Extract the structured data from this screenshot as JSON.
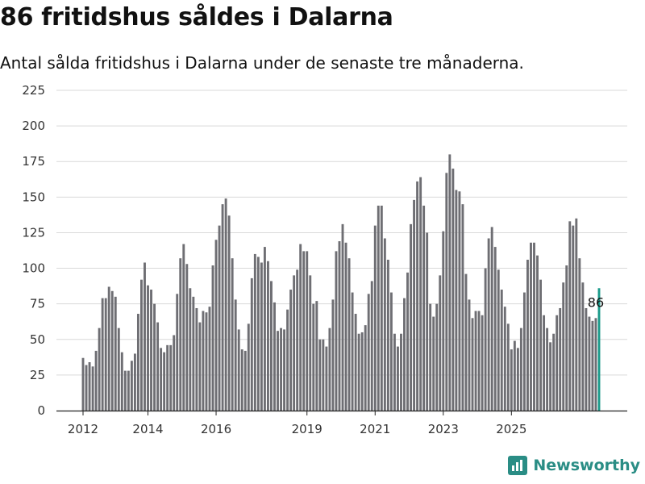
{
  "title": "86 fritidshus såldes i Dalarna",
  "subtitle": "Antal sålda fritidshus i Dalarna under de senaste tre månaderna.",
  "brand": {
    "name": "Newsworthy",
    "color": "#2a8d85",
    "logo_icon": "newsworthy-chart-icon"
  },
  "colors": {
    "bar": "#6e6e73",
    "highlight": "#1a9a8a",
    "grid": "#d9d9d9",
    "text": "#333333"
  },
  "chart_data": {
    "type": "bar",
    "title": "86 fritidshus såldes i Dalarna",
    "subtitle": "Antal sålda fritidshus i Dalarna under de senaste tre månaderna.",
    "ylim": [
      0,
      225
    ],
    "yticks": [
      0,
      25,
      50,
      75,
      100,
      125,
      150,
      175,
      200,
      225
    ],
    "xticks": [
      {
        "label": "2012",
        "index": 0
      },
      {
        "label": "2014",
        "index": 20
      },
      {
        "label": "2016",
        "index": 41
      },
      {
        "label": "2019",
        "index": 69
      },
      {
        "label": "2021",
        "index": 90
      },
      {
        "label": "2023",
        "index": 111
      },
      {
        "label": "2025",
        "index": 132
      }
    ],
    "grid": true,
    "series": [
      {
        "values": [
          37,
          32,
          34,
          31,
          42,
          58,
          79,
          79,
          87,
          84,
          80,
          58,
          41,
          28,
          28,
          35,
          40,
          68,
          92,
          104,
          88,
          85,
          75,
          62,
          44,
          41,
          46,
          46,
          53,
          82,
          107,
          117,
          103,
          86,
          80,
          72,
          62,
          70,
          69,
          73,
          102,
          120,
          130,
          145,
          149,
          137,
          107,
          78,
          57,
          43,
          42,
          61,
          93,
          110,
          108,
          104,
          115,
          105,
          91,
          76,
          56,
          58,
          57,
          71,
          85,
          95,
          99,
          117,
          112,
          112,
          95,
          75,
          77,
          50,
          50,
          45,
          58,
          78,
          112,
          119,
          131,
          118,
          107,
          83,
          68,
          54,
          55,
          60,
          82,
          91,
          130,
          144,
          144,
          121,
          106,
          83,
          54,
          45,
          54,
          79,
          97,
          131,
          148,
          161,
          164,
          144,
          125,
          75,
          66,
          75,
          95,
          126,
          167,
          180,
          170,
          155,
          154,
          145,
          96,
          78,
          65,
          70,
          70,
          67,
          100,
          121,
          129,
          115,
          99,
          85,
          73,
          61,
          43,
          49,
          44,
          58,
          83,
          106,
          118,
          118,
          109,
          92,
          67,
          58,
          48,
          54,
          67,
          72,
          90,
          102,
          133,
          130,
          135,
          107,
          90,
          72,
          66,
          63,
          65,
          86
        ]
      }
    ],
    "annotations": [
      {
        "label": "86",
        "index": 158
      }
    ]
  }
}
